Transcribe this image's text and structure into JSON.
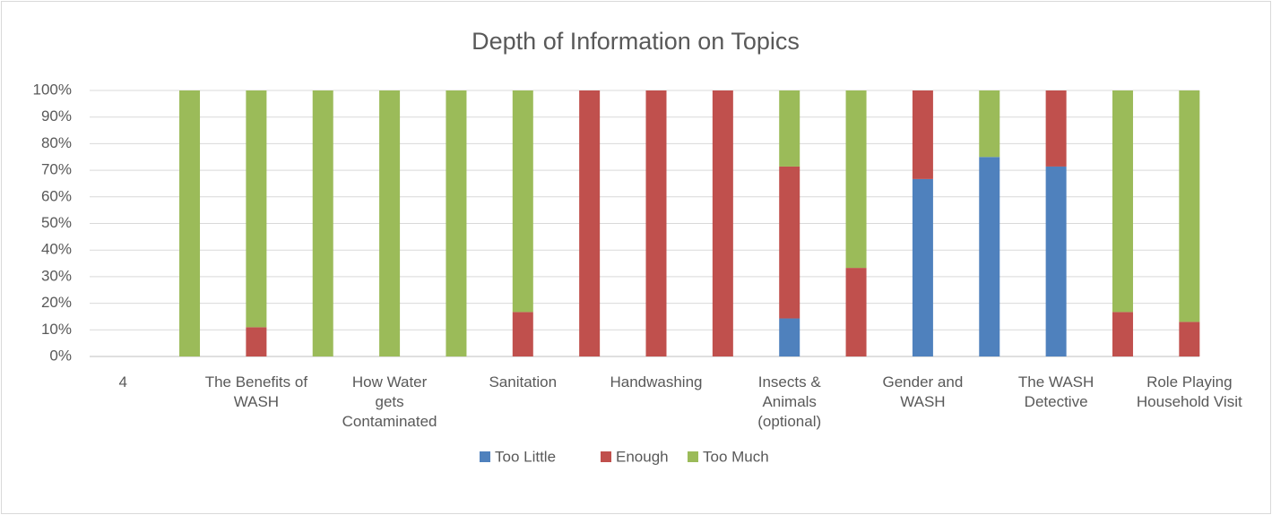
{
  "chart_data": {
    "type": "stacked_bar",
    "title": "Depth of Information on Topics",
    "categories": [
      "4",
      null,
      "The Benefits of WASH",
      null,
      "How Water gets Contaminated",
      null,
      "Sanitation",
      null,
      "Handwashing",
      null,
      "Insects & Animals (optional)",
      null,
      "Gender and WASH",
      null,
      "The WASH Detective",
      null,
      "Role Playing Household Visit"
    ],
    "series": [
      {
        "name": "Too Little",
        "color": "#4f81bd",
        "values": [
          null,
          null,
          null,
          null,
          null,
          null,
          null,
          null,
          null,
          null,
          14.3,
          null,
          66.7,
          75,
          71.4,
          null,
          null
        ]
      },
      {
        "name": "Enough",
        "color": "#c0504d",
        "values": [
          null,
          null,
          11,
          null,
          null,
          null,
          16.7,
          100,
          100,
          100,
          57.1,
          33.3,
          33.3,
          null,
          28.6,
          16.7,
          13
        ]
      },
      {
        "name": "Too Much",
        "color": "#9bbb59",
        "values": [
          null,
          100,
          89,
          100,
          100,
          100,
          83.3,
          null,
          null,
          null,
          28.6,
          66.7,
          null,
          25,
          null,
          83.3,
          87
        ]
      }
    ],
    "ylim": [
      0,
      100
    ],
    "yticks": [
      {
        "value": 0,
        "label": "0%"
      },
      {
        "value": 10,
        "label": "10%"
      },
      {
        "value": 20,
        "label": "20%"
      },
      {
        "value": 30,
        "label": "30%"
      },
      {
        "value": 40,
        "label": "40%"
      },
      {
        "value": 50,
        "label": "50%"
      },
      {
        "value": 60,
        "label": "60%"
      },
      {
        "value": 70,
        "label": "70%"
      },
      {
        "value": 80,
        "label": "80%"
      },
      {
        "value": 90,
        "label": "90%"
      },
      {
        "value": 100,
        "label": "100%"
      }
    ],
    "grid": true,
    "legend": "bottom"
  }
}
